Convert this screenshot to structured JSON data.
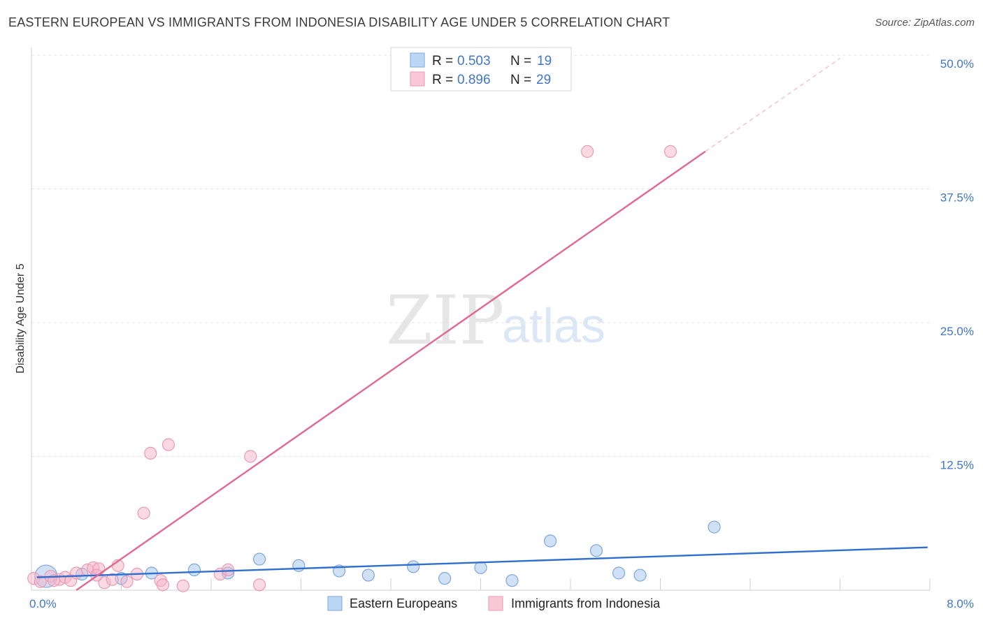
{
  "title": "EASTERN EUROPEAN VS IMMIGRANTS FROM INDONESIA DISABILITY AGE UNDER 5 CORRELATION CHART",
  "source": "Source: ZipAtlas.com",
  "chart_data": {
    "type": "scatter",
    "ylabel": "Disability Age Under 5",
    "xlim": [
      0,
      8
    ],
    "ylim": [
      0,
      50
    ],
    "x_tick_labels": [
      "0.0%",
      "8.0%"
    ],
    "y_ticks": [
      12.5,
      25.0,
      37.5,
      50.0
    ],
    "y_tick_labels": [
      "12.5%",
      "25.0%",
      "37.5%",
      "50.0%"
    ],
    "legend": {
      "rows": [
        {
          "r_label": "R =",
          "r_value": "0.503",
          "n_label": "N =",
          "n_value": "19"
        },
        {
          "r_label": "R =",
          "r_value": "0.896",
          "n_label": "N =",
          "n_value": "29"
        }
      ]
    },
    "watermark": {
      "part1": "ZIP",
      "part2": "atlas"
    },
    "series": [
      {
        "name": "Eastern Europeans",
        "color": "#a9c8ef",
        "line_color": "#2f6fcf",
        "trend": {
          "x0": 0.05,
          "y0": 1.2,
          "x1": 7.98,
          "y1": 4.0
        },
        "points": [
          {
            "x": 0.13,
            "y": 1.3,
            "big": true
          },
          {
            "x": 0.45,
            "y": 1.5
          },
          {
            "x": 0.8,
            "y": 1.1
          },
          {
            "x": 1.07,
            "y": 1.6
          },
          {
            "x": 1.45,
            "y": 1.9
          },
          {
            "x": 1.75,
            "y": 1.6
          },
          {
            "x": 2.03,
            "y": 2.9
          },
          {
            "x": 2.38,
            "y": 2.3
          },
          {
            "x": 2.74,
            "y": 1.8
          },
          {
            "x": 3.0,
            "y": 1.4
          },
          {
            "x": 3.4,
            "y": 2.2
          },
          {
            "x": 3.68,
            "y": 1.1
          },
          {
            "x": 4.0,
            "y": 2.1
          },
          {
            "x": 4.28,
            "y": 0.9
          },
          {
            "x": 4.62,
            "y": 4.6
          },
          {
            "x": 5.03,
            "y": 3.7
          },
          {
            "x": 5.23,
            "y": 1.6
          },
          {
            "x": 5.42,
            "y": 1.4
          },
          {
            "x": 6.08,
            "y": 5.9
          }
        ]
      },
      {
        "name": "Immigrants from Indonesia",
        "color": "#f5b3c8",
        "line_color": "#e0698f",
        "trend": {
          "x0": 0.4,
          "y0": 0.0,
          "x1": 6.0,
          "y1": 41.0
        },
        "trend_dash": {
          "x0": 6.0,
          "y0": 41.0,
          "x1": 7.2,
          "y1": 49.7
        },
        "points": [
          {
            "x": 0.02,
            "y": 1.1
          },
          {
            "x": 0.08,
            "y": 0.8
          },
          {
            "x": 0.17,
            "y": 1.3
          },
          {
            "x": 0.25,
            "y": 1.0
          },
          {
            "x": 0.3,
            "y": 1.2
          },
          {
            "x": 0.35,
            "y": 0.9
          },
          {
            "x": 0.4,
            "y": 1.6
          },
          {
            "x": 0.5,
            "y": 1.9
          },
          {
            "x": 0.55,
            "y": 2.1
          },
          {
            "x": 0.6,
            "y": 2.0
          },
          {
            "x": 0.65,
            "y": 0.7
          },
          {
            "x": 0.72,
            "y": 1.0
          },
          {
            "x": 0.77,
            "y": 2.3
          },
          {
            "x": 0.85,
            "y": 0.8
          },
          {
            "x": 0.94,
            "y": 1.5
          },
          {
            "x": 1.0,
            "y": 7.2
          },
          {
            "x": 1.06,
            "y": 12.8
          },
          {
            "x": 1.15,
            "y": 0.9
          },
          {
            "x": 1.17,
            "y": 0.5
          },
          {
            "x": 1.22,
            "y": 13.6
          },
          {
            "x": 1.35,
            "y": 0.4
          },
          {
            "x": 1.68,
            "y": 1.5
          },
          {
            "x": 1.75,
            "y": 1.9
          },
          {
            "x": 1.95,
            "y": 12.5
          },
          {
            "x": 2.03,
            "y": 0.5
          },
          {
            "x": 4.95,
            "y": 41.0
          },
          {
            "x": 5.69,
            "y": 41.0
          },
          {
            "x": 0.58,
            "y": 1.4
          },
          {
            "x": 0.2,
            "y": 0.9
          }
        ]
      }
    ]
  }
}
